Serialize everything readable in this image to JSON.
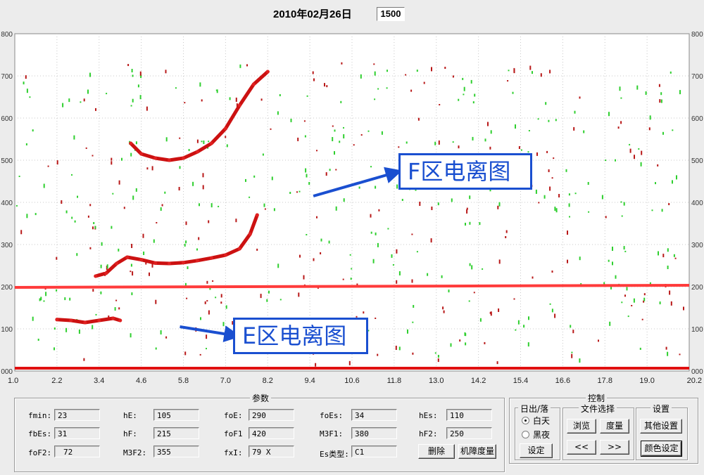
{
  "header": {
    "date": "2010年02月26日",
    "time": "1500"
  },
  "chart_data": {
    "type": "scatter",
    "title": "",
    "xlabel": "",
    "ylabel": "",
    "x_ticks": [
      "1.0",
      "2.2",
      "3.4",
      "4.6",
      "5.8",
      "7.0",
      "8.2",
      "9.4",
      "10.6",
      "11.8",
      "13.0",
      "14.2",
      "15.4",
      "16.6",
      "17.8",
      "19.0",
      "20.2"
    ],
    "y_ticks": [
      "000",
      "100",
      "200",
      "300",
      "400",
      "500",
      "600",
      "700",
      "800"
    ],
    "xlim": [
      1.0,
      20.2
    ],
    "ylim": [
      0,
      800
    ],
    "grid": true,
    "reference_line": {
      "y": 200,
      "color": "#ff3b3b"
    },
    "traces": [
      {
        "name": "E-layer trace",
        "color": "#cc1111",
        "points": [
          [
            2.2,
            122
          ],
          [
            2.6,
            120
          ],
          [
            3.0,
            115
          ],
          [
            3.4,
            120
          ],
          [
            3.8,
            125
          ],
          [
            4.0,
            120
          ]
        ]
      },
      {
        "name": "F-layer lower trace",
        "color": "#cc1111",
        "points": [
          [
            3.3,
            225
          ],
          [
            3.6,
            232
          ],
          [
            3.9,
            255
          ],
          [
            4.2,
            270
          ],
          [
            4.6,
            264
          ],
          [
            5.0,
            256
          ],
          [
            5.4,
            255
          ],
          [
            5.8,
            257
          ],
          [
            6.2,
            262
          ],
          [
            6.6,
            268
          ],
          [
            7.0,
            275
          ],
          [
            7.4,
            290
          ],
          [
            7.7,
            325
          ],
          [
            7.9,
            370
          ]
        ]
      },
      {
        "name": "F-layer upper trace",
        "color": "#cc1111",
        "points": [
          [
            4.3,
            540
          ],
          [
            4.6,
            515
          ],
          [
            5.0,
            505
          ],
          [
            5.4,
            500
          ],
          [
            5.8,
            505
          ],
          [
            6.2,
            520
          ],
          [
            6.6,
            540
          ],
          [
            7.0,
            575
          ],
          [
            7.4,
            630
          ],
          [
            7.8,
            680
          ],
          [
            8.2,
            710
          ]
        ]
      }
    ],
    "annotations": [
      {
        "label": "F区电离图",
        "arrow_from": [
          9.5,
          415
        ],
        "arrow_to": [
          11.8,
          470
        ]
      },
      {
        "label": "E区电离图",
        "arrow_from": [
          5.7,
          105
        ],
        "arrow_to": [
          7.2,
          85
        ]
      }
    ]
  },
  "params": {
    "title": "参数",
    "rows": [
      [
        {
          "label": "fmin:",
          "value": "23"
        },
        {
          "label": "hE:",
          "value": "105"
        },
        {
          "label": "foE:",
          "value": "290"
        },
        {
          "label": "foEs:",
          "value": "34"
        },
        {
          "label": "hEs:",
          "value": "110"
        }
      ],
      [
        {
          "label": "fbEs:",
          "value": "31"
        },
        {
          "label": "hF:",
          "value": "215"
        },
        {
          "label": "foF1",
          "value": "420"
        },
        {
          "label": "M3F1:",
          "value": "380"
        },
        {
          "label": "hF2:",
          "value": "250"
        }
      ],
      [
        {
          "label": "foF2:",
          "value": "72"
        },
        {
          "label": "M3F2:",
          "value": "355"
        },
        {
          "label": "fxI:",
          "value": "79 X"
        },
        {
          "label": "Es类型:",
          "value": "C1"
        }
      ]
    ],
    "delete_button": "删除",
    "fault_button": "机障度量"
  },
  "control": {
    "title": "控制",
    "sunrise": {
      "title": "日出/落",
      "day": "白天",
      "night": "黑夜",
      "set_button": "设定"
    },
    "file": {
      "title": "文件选择",
      "browse": "浏览",
      "measure": "度量",
      "prev": "<<",
      "next": ">>"
    },
    "settings": {
      "title": "设置",
      "other": "其他设置",
      "color": "颜色设定"
    }
  }
}
